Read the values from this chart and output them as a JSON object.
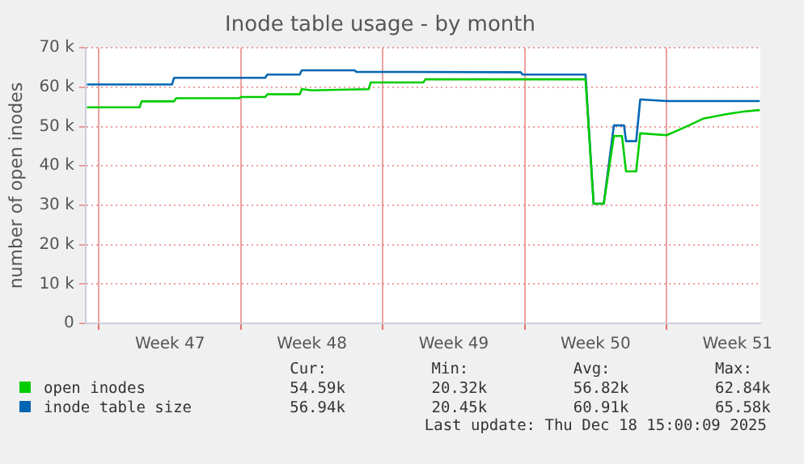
{
  "chart_data": {
    "type": "line",
    "title": "Inode table usage - by month",
    "ylabel": "number of open inodes",
    "xlim": [
      "2025-11-15T08:00",
      "2025-12-18T15:00"
    ],
    "xticks": [
      {
        "value": "2025-11-16",
        "label": null
      },
      {
        "value": "2025-11-19T12:00",
        "label": "Week 47"
      },
      {
        "value": "2025-11-23",
        "label": null
      },
      {
        "value": "2025-11-26T12:00",
        "label": "Week 48"
      },
      {
        "value": "2025-11-30",
        "label": null
      },
      {
        "value": "2025-12-03T12:00",
        "label": "Week 49"
      },
      {
        "value": "2025-12-07",
        "label": null
      },
      {
        "value": "2025-12-10T12:00",
        "label": "Week 50"
      },
      {
        "value": "2025-12-14",
        "label": null
      },
      {
        "value": "2025-12-17T12:00",
        "label": "Week 51"
      }
    ],
    "ylim": [
      0,
      70000
    ],
    "yticks": [
      {
        "value": 0,
        "label": "0"
      },
      {
        "value": 10000,
        "label": "10 k"
      },
      {
        "value": 20000,
        "label": "20 k"
      },
      {
        "value": 30000,
        "label": "30 k"
      },
      {
        "value": 40000,
        "label": "40 k"
      },
      {
        "value": 50000,
        "label": "50 k"
      },
      {
        "value": 60000,
        "label": "60 k"
      },
      {
        "value": 70000,
        "label": "70 k"
      }
    ],
    "grid": true,
    "legend": "bottom left",
    "series": [
      {
        "name": "open inodes",
        "color": "#00cc00",
        "x": [
          "2025-11-15T09:36",
          "2025-11-18T00:00",
          "2025-11-18T02:24",
          "2025-11-19T16:48",
          "2025-11-19T19:12",
          "2025-11-22T21:36",
          "2025-11-23T00:00",
          "2025-11-24T04:48",
          "2025-11-24T07:12",
          "2025-11-25T21:36",
          "2025-11-26T00:00",
          "2025-11-26T12:00",
          "2025-11-29T07:12",
          "2025-11-29T09:36",
          "2025-12-02T00:00",
          "2025-12-02T02:24",
          "2025-12-10T00:00",
          "2025-12-10T09:36",
          "2025-12-10T21:36",
          "2025-12-11T09:36",
          "2025-12-11T19:12",
          "2025-12-12T00:00",
          "2025-12-12T12:00",
          "2025-12-12T16:48",
          "2025-12-14T00:00",
          "2025-12-14T12:00",
          "2025-12-15T02:24",
          "2025-12-15T19:12",
          "2025-12-17T00:00",
          "2025-12-17T19:12",
          "2025-12-18T14:24"
        ],
        "values": [
          54900,
          54900,
          56400,
          56400,
          57200,
          57200,
          57500,
          57500,
          58200,
          58200,
          59500,
          59200,
          59500,
          61200,
          61200,
          62000,
          62000,
          30400,
          30400,
          47600,
          47600,
          38600,
          38600,
          48300,
          47800,
          48900,
          50300,
          52000,
          53200,
          53800,
          54200
        ]
      },
      {
        "name": "inode table size",
        "color": "#0066b3",
        "x": [
          "2025-11-15T09:36",
          "2025-11-19T14:24",
          "2025-11-19T16:48",
          "2025-11-24T04:48",
          "2025-11-24T07:12",
          "2025-11-25T21:36",
          "2025-11-26T00:00",
          "2025-11-28T14:24",
          "2025-11-28T16:48",
          "2025-12-06T19:12",
          "2025-12-06T21:36",
          "2025-12-10T00:00",
          "2025-12-10T09:36",
          "2025-12-10T21:36",
          "2025-12-11T09:36",
          "2025-12-11T21:36",
          "2025-12-12T00:00",
          "2025-12-12T12:00",
          "2025-12-12T16:48",
          "2025-12-14T00:00",
          "2025-12-18T14:24"
        ],
        "values": [
          60700,
          60700,
          62400,
          62400,
          63200,
          63200,
          64300,
          64300,
          63900,
          63800,
          63200,
          63200,
          30400,
          30400,
          50300,
          50300,
          46300,
          46300,
          56900,
          56500,
          56500
        ]
      }
    ],
    "annotations": [
      "Cur:",
      "Min:",
      "Avg:",
      "Max:",
      "54.59k",
      "20.32k",
      "56.82k",
      "62.84k",
      "56.94k",
      "20.45k",
      "60.91k",
      "65.58k",
      "Last update: Thu Dec 18 15:00:09 2025"
    ]
  }
}
